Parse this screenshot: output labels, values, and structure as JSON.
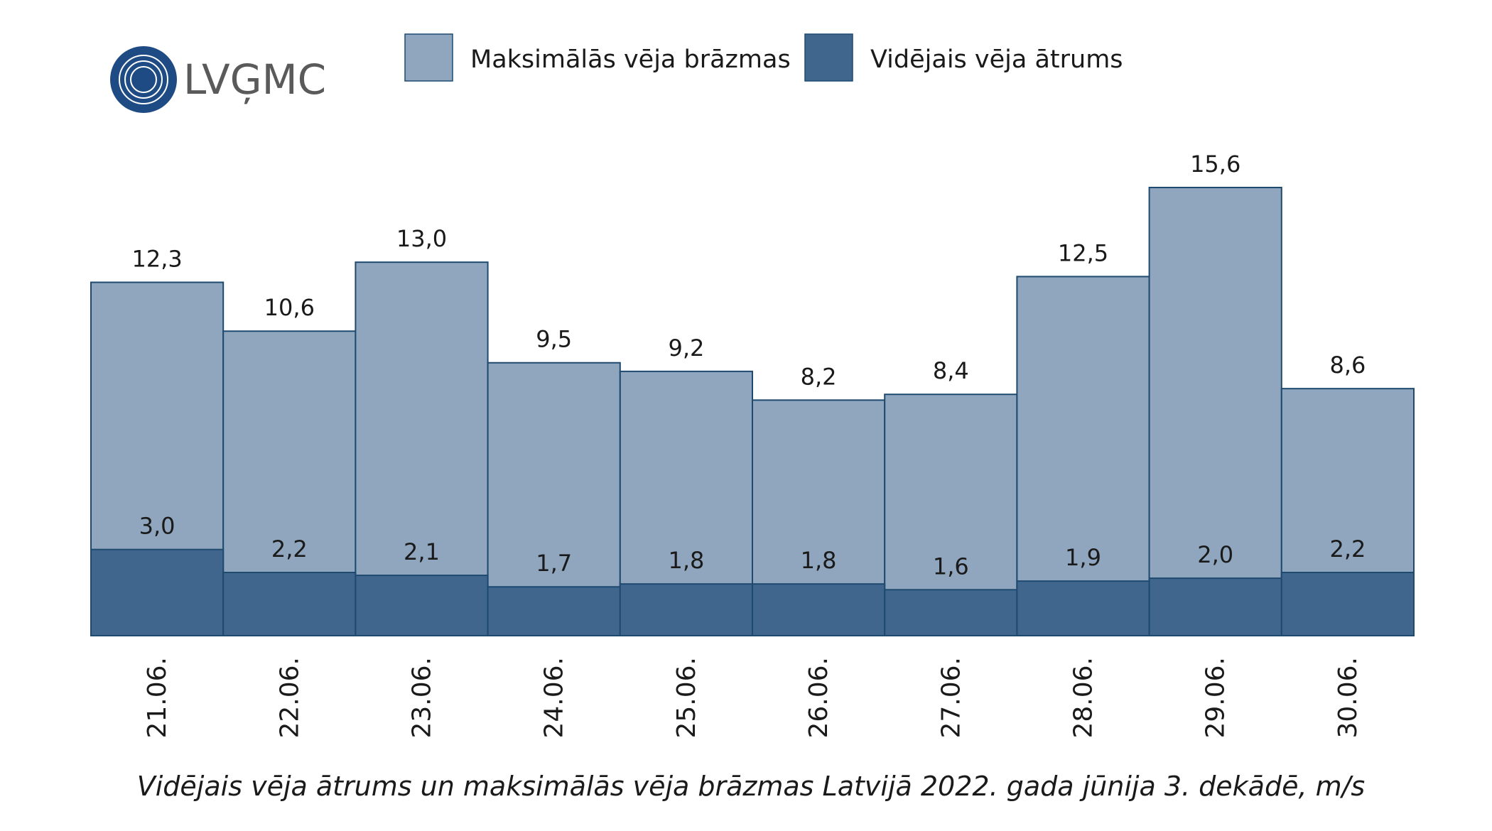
{
  "logo": "LVĢMC",
  "chart_data": {
    "type": "bar",
    "overlap": true,
    "title": "Vidējais vēja ātrums un maksimālās vēja brāzmas Latvijā 2022. gada jūnija 3. dekādē, m/s",
    "categories": [
      "21.06.",
      "22.06.",
      "23.06.",
      "24.06.",
      "25.06.",
      "26.06.",
      "27.06.",
      "28.06.",
      "29.06.",
      "30.06."
    ],
    "series": [
      {
        "name": "Maksimālās vēja brāzmas",
        "color": "#8fa6be",
        "values": [
          12.3,
          10.6,
          13.0,
          9.5,
          9.2,
          8.2,
          8.4,
          12.5,
          15.6,
          8.6
        ],
        "value_labels": [
          "12,3",
          "10,6",
          "13,0",
          "9,5",
          "9,2",
          "8,2",
          "8,4",
          "12,5",
          "15,6",
          "8,6"
        ]
      },
      {
        "name": "Vidējais vēja ātrums",
        "color": "#41668d",
        "values": [
          3.0,
          2.2,
          2.1,
          1.7,
          1.8,
          1.8,
          1.6,
          1.9,
          2.0,
          2.2
        ],
        "value_labels": [
          "3,0",
          "2,2",
          "2,1",
          "1,7",
          "1,8",
          "1,8",
          "1,6",
          "1,9",
          "2,0",
          "2,2"
        ]
      }
    ],
    "legend": "top"
  }
}
